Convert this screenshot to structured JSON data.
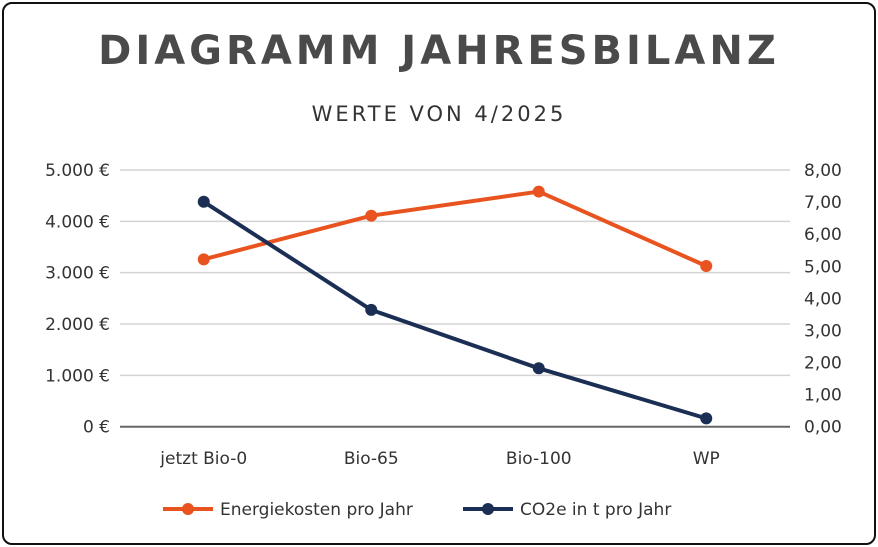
{
  "chart_data": {
    "type": "line",
    "title": "DIAGRAMM JAHRESBILANZ",
    "subtitle": "WERTE VON 4/2025",
    "categories": [
      "jetzt Bio-0",
      "Bio-65",
      "Bio-100",
      "WP"
    ],
    "y_left": {
      "ylim": [
        0,
        5000
      ],
      "ticks": [
        "0 €",
        "1.000 €",
        "2.000 €",
        "3.000 €",
        "4.000 €",
        "5.000 €"
      ],
      "tick_values": [
        0,
        1000,
        2000,
        3000,
        4000,
        5000
      ]
    },
    "y_right": {
      "ylim": [
        0,
        8
      ],
      "ticks": [
        "0,00",
        "1,00",
        "2,00",
        "3,00",
        "4,00",
        "5,00",
        "6,00",
        "7,00",
        "8,00"
      ],
      "tick_values": [
        0,
        1,
        2,
        3,
        4,
        5,
        6,
        7,
        8
      ]
    },
    "grid": true,
    "legend_position": "bottom",
    "series": [
      {
        "name": "Energiekosten pro Jahr",
        "axis": "left",
        "color": "#e8531f",
        "values": [
          3260,
          4110,
          4580,
          3130
        ]
      },
      {
        "name": "CO2e in t pro Jahr",
        "axis": "right",
        "color": "#1b2f55",
        "values": [
          7.01,
          3.64,
          1.82,
          0.26
        ]
      }
    ]
  }
}
